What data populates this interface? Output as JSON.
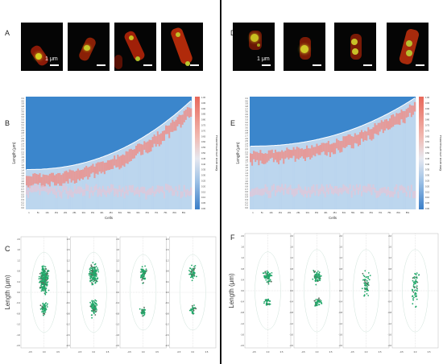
{
  "panels": {
    "a": "A",
    "b": "B",
    "c": "C",
    "d": "D",
    "e": "E",
    "f": "F"
  },
  "scale_label": "1 μm",
  "colors": {
    "heat_low": "#3a7ec8",
    "heat_high": "#e85a50",
    "scatter": "#21a86a"
  },
  "chart_data": [
    {
      "panel": "B",
      "type": "heatmap",
      "xlabel": "Cells",
      "ylabel": "Length (μm)",
      "colorbar_label": "Fluorescence intensity",
      "y_ticks": [
        "4.1",
        "4.0",
        "3.9",
        "3.8",
        "3.7",
        "3.6",
        "3.5",
        "3.4",
        "3.3",
        "3.2",
        "3.1",
        "3.0",
        "2.9",
        "2.8",
        "2.7",
        "2.6",
        "2.5",
        "2.4",
        "2.3",
        "2.2",
        "2.1",
        "2.0",
        "1.9",
        "1.8",
        "1.7",
        "1.6",
        "1.5",
        "1.4",
        "1.3",
        "1.2",
        "1.1",
        "1.0",
        "0.9",
        "0.8",
        "0.7",
        "0.6",
        "0.5",
        "0.4",
        "0.3",
        "0.2",
        "0.1",
        "0.0"
      ],
      "x_ticks": [
        "1",
        "51",
        "101",
        "151",
        "201",
        "251",
        "301",
        "351",
        "401",
        "451",
        "501",
        "551",
        "601",
        "651",
        "701",
        "751",
        "801",
        "851"
      ],
      "colorbar_ticks": [
        "1.00",
        "0.95",
        "0.90",
        "0.85",
        "0.80",
        "0.75",
        "0.70",
        "0.65",
        "0.60",
        "0.55",
        "0.50",
        "0.45",
        "0.40",
        "0.35",
        "0.30",
        "0.25",
        "0.20",
        "0.15",
        "0.10",
        "0.05",
        "0.00"
      ]
    },
    {
      "panel": "E",
      "type": "heatmap",
      "xlabel": "Cells",
      "ylabel": "Length (μm)",
      "colorbar_label": "Fluorescence intensity",
      "y_ticks": [
        "4.1",
        "4.0",
        "3.9",
        "3.8",
        "3.7",
        "3.6",
        "3.5",
        "3.4",
        "3.3",
        "3.2",
        "3.1",
        "3.0",
        "2.9",
        "2.8",
        "2.7",
        "2.6",
        "2.5",
        "2.4",
        "2.3",
        "2.2",
        "2.1",
        "2.0",
        "1.9",
        "1.8",
        "1.7",
        "1.6",
        "1.5",
        "1.4",
        "1.3",
        "1.2",
        "1.1",
        "1.0",
        "0.9",
        "0.8",
        "0.7",
        "0.6",
        "0.5",
        "0.4",
        "0.3",
        "0.2",
        "0.1",
        "0.0"
      ],
      "x_ticks": [
        "1",
        "51",
        "101",
        "151",
        "201",
        "251",
        "301",
        "351",
        "401",
        "451",
        "501",
        "551",
        "601",
        "651",
        "701",
        "751",
        "801",
        "851"
      ],
      "colorbar_ticks": [
        "1.00",
        "0.95",
        "0.90",
        "0.85",
        "0.80",
        "0.75",
        "0.70",
        "0.65",
        "0.60",
        "0.55",
        "0.50",
        "0.45",
        "0.40",
        "0.35",
        "0.30",
        "0.25",
        "0.20",
        "0.15",
        "0.10",
        "0.05",
        "0.00"
      ]
    },
    {
      "panel": "C",
      "type": "scatter",
      "ylabel": "Length (μm)",
      "y_ticks": [
        "2.0",
        "1.8",
        "1.6",
        "1.4",
        "1.2",
        "1.0",
        "0.8",
        "0.6",
        "0.4",
        "0.2",
        "0.0",
        "-0.2",
        "-0.4",
        "-0.6",
        "-0.8",
        "-1.0",
        "-1.2",
        "-1.4",
        "-1.6",
        "-1.8",
        "-2.0"
      ],
      "x_ticks": [
        "-0.5",
        "0.0",
        "0.5"
      ],
      "subplots": 4
    },
    {
      "panel": "F",
      "type": "scatter",
      "ylabel": "Length (μm)",
      "y_ticks": [
        "2.0",
        "1.8",
        "1.6",
        "1.4",
        "1.2",
        "1.0",
        "0.8",
        "0.6",
        "0.4",
        "0.2",
        "0.0",
        "-0.2",
        "-0.4",
        "-0.6",
        "-0.8",
        "-1.0",
        "-1.2",
        "-1.4",
        "-1.6",
        "-1.8",
        "-2.0"
      ],
      "x_ticks": [
        "-0.5",
        "0.0",
        "0.5"
      ],
      "subplots": 4
    }
  ]
}
